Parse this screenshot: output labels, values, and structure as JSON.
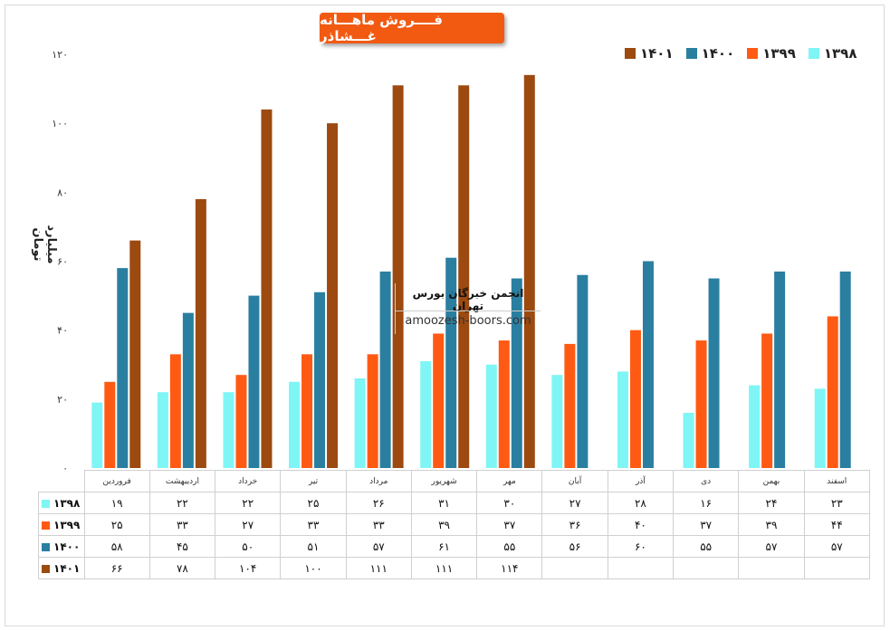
{
  "chart_data": {
    "type": "bar",
    "title": "فــــروش ماهـــانه غـــشاذر",
    "ylabel": "میلیارد تومان",
    "xlabel": "",
    "ylim": [
      0,
      120
    ],
    "yticks": [
      "۰",
      "۲۰",
      "۴۰",
      "۶۰",
      "۸۰",
      "۱۰۰",
      "۱۲۰"
    ],
    "ytick_values": [
      0,
      20,
      40,
      60,
      80,
      100,
      120
    ],
    "grid": false,
    "legend_position": "top-right",
    "categories": [
      "فروردین",
      "اردیبهشت",
      "خرداد",
      "تیر",
      "مرداد",
      "شهریور",
      "مهر",
      "آبان",
      "آذر",
      "دی",
      "بهمن",
      "اسفند"
    ],
    "series": [
      {
        "name": "۱۳۹۸",
        "color": "#7ff5f5",
        "values": [
          19,
          22,
          22,
          25,
          26,
          31,
          30,
          27,
          28,
          16,
          24,
          23
        ],
        "labels": [
          "۱۹",
          "۲۲",
          "۲۲",
          "۲۵",
          "۲۶",
          "۳۱",
          "۳۰",
          "۲۷",
          "۲۸",
          "۱۶",
          "۲۴",
          "۲۳"
        ]
      },
      {
        "name": "۱۳۹۹",
        "color": "#ff5a13",
        "values": [
          25,
          33,
          27,
          33,
          33,
          39,
          37,
          36,
          40,
          37,
          39,
          44
        ],
        "labels": [
          "۲۵",
          "۳۳",
          "۲۷",
          "۳۳",
          "۳۳",
          "۳۹",
          "۳۷",
          "۳۶",
          "۴۰",
          "۳۷",
          "۳۹",
          "۴۴"
        ]
      },
      {
        "name": "۱۴۰۰",
        "color": "#2a7fa0",
        "values": [
          58,
          45,
          50,
          51,
          57,
          61,
          55,
          56,
          60,
          55,
          57,
          57
        ],
        "labels": [
          "۵۸",
          "۴۵",
          "۵۰",
          "۵۱",
          "۵۷",
          "۶۱",
          "۵۵",
          "۵۶",
          "۶۰",
          "۵۵",
          "۵۷",
          "۵۷"
        ]
      },
      {
        "name": "۱۴۰۱",
        "color": "#9c4a10",
        "values": [
          66,
          78,
          104,
          100,
          111,
          111,
          114,
          null,
          null,
          null,
          null,
          null
        ],
        "labels": [
          "۶۶",
          "۷۸",
          "۱۰۴",
          "۱۰۰",
          "۱۱۱",
          "۱۱۱",
          "۱۱۴",
          "",
          "",
          "",
          "",
          ""
        ]
      }
    ]
  },
  "watermark": {
    "line1": "انجمن خبرگان بورس تهران",
    "line2": "amoozesh-boors.com"
  }
}
